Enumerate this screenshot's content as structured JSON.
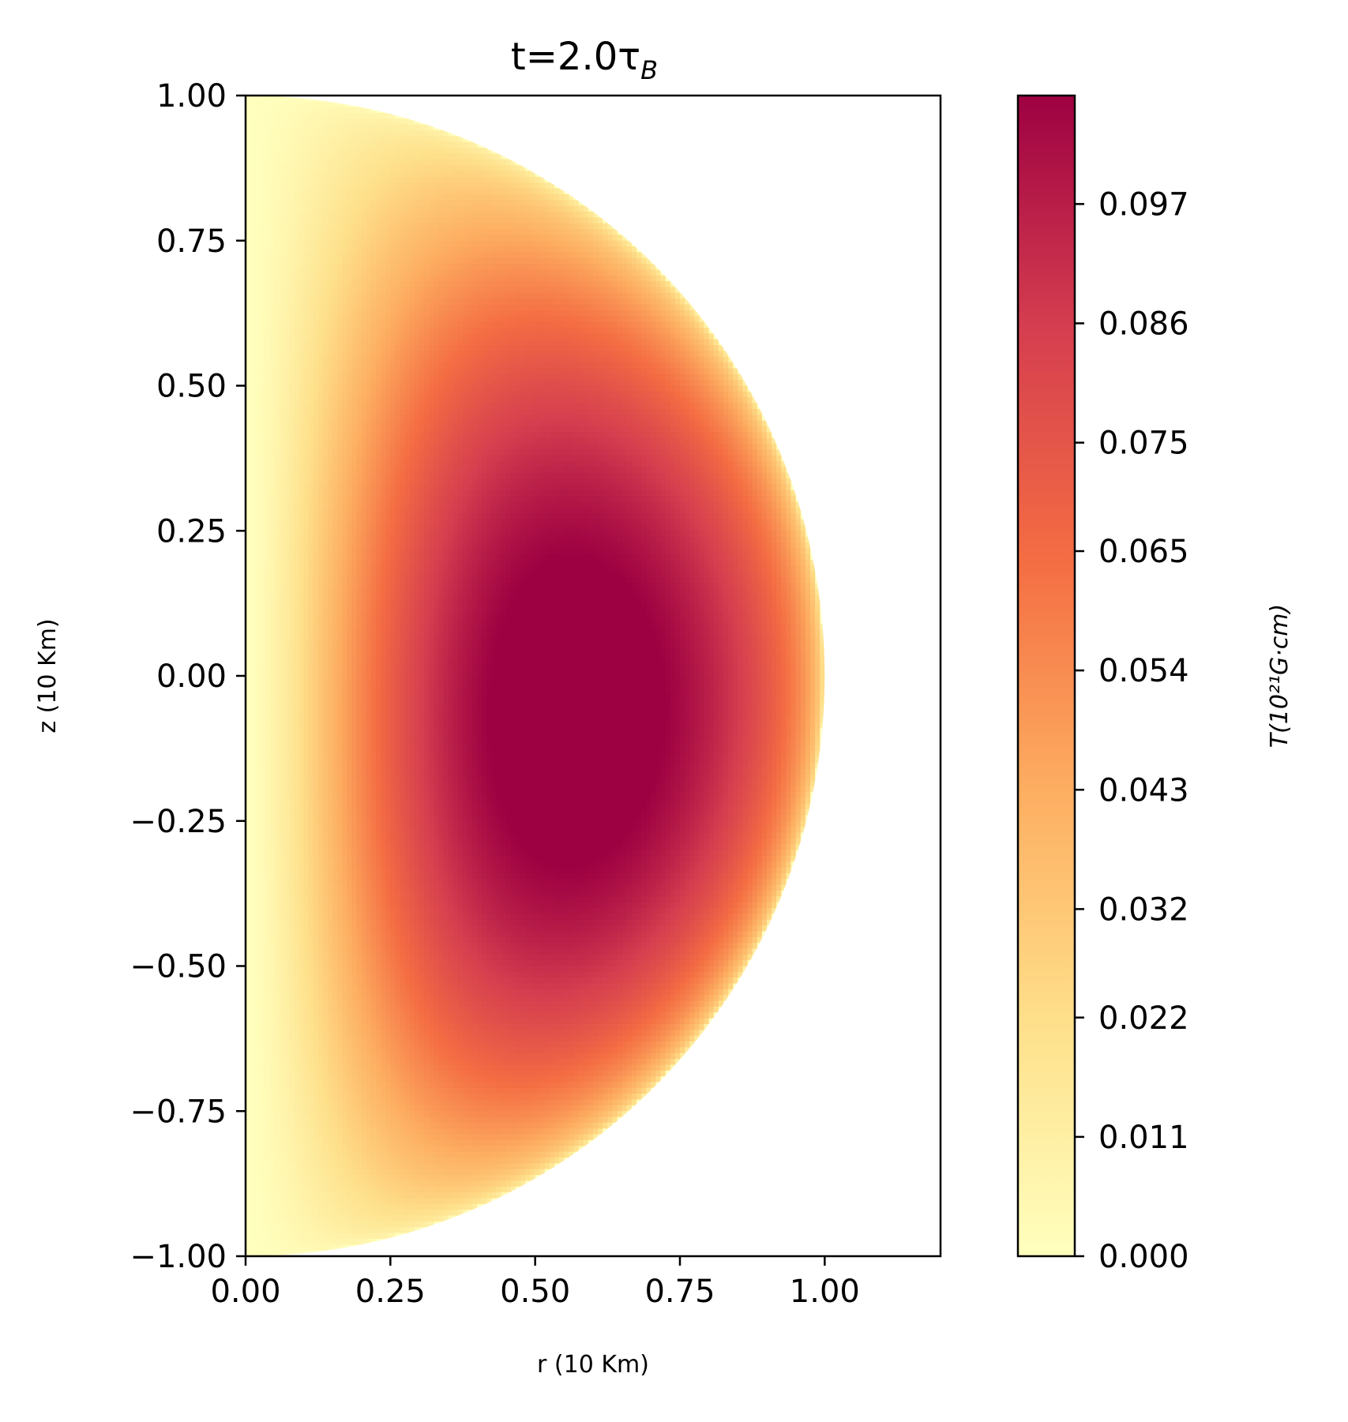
{
  "chart_data": {
    "type": "heatmap",
    "title": "t=2.0τ",
    "title_subscript": "B",
    "xlabel": "r (10 Km)",
    "ylabel": "z (10 Km)",
    "xlim": [
      0.0,
      1.2
    ],
    "ylim": [
      -1.0,
      1.0
    ],
    "x_ticks": [
      0.0,
      0.25,
      0.5,
      0.75,
      1.0
    ],
    "x_tick_labels": [
      "0.00",
      "0.25",
      "0.50",
      "0.75",
      "1.00"
    ],
    "y_ticks": [
      1.0,
      0.75,
      0.5,
      0.25,
      0.0,
      -0.25,
      -0.5,
      -0.75,
      -1.0
    ],
    "y_tick_labels": [
      "1.00",
      "0.75",
      "0.50",
      "0.25",
      "0.00",
      "−0.25",
      "−0.50",
      "−0.75",
      "−1.00"
    ],
    "field": {
      "domain": "half-disk r ≥ 0, r² + z² ≤ 1",
      "peak": {
        "r": 0.72,
        "z": -0.12,
        "value": 0.107
      },
      "min_value": 0.0
    },
    "colorbar": {
      "label": "T(10²¹G·cm)",
      "colormap": "YlOrRd-Spectral",
      "vmin": 0.0,
      "vmax": 0.107,
      "ticks": [
        0.0,
        0.011,
        0.022,
        0.032,
        0.043,
        0.054,
        0.065,
        0.075,
        0.086,
        0.097
      ],
      "tick_labels": [
        "0.000",
        "0.011",
        "0.022",
        "0.032",
        "0.043",
        "0.054",
        "0.065",
        "0.075",
        "0.086",
        "0.097"
      ],
      "stops": [
        "#ffffbe",
        "#fee08b",
        "#fdae61",
        "#f46d43",
        "#d53e4f",
        "#9e0142"
      ]
    }
  }
}
